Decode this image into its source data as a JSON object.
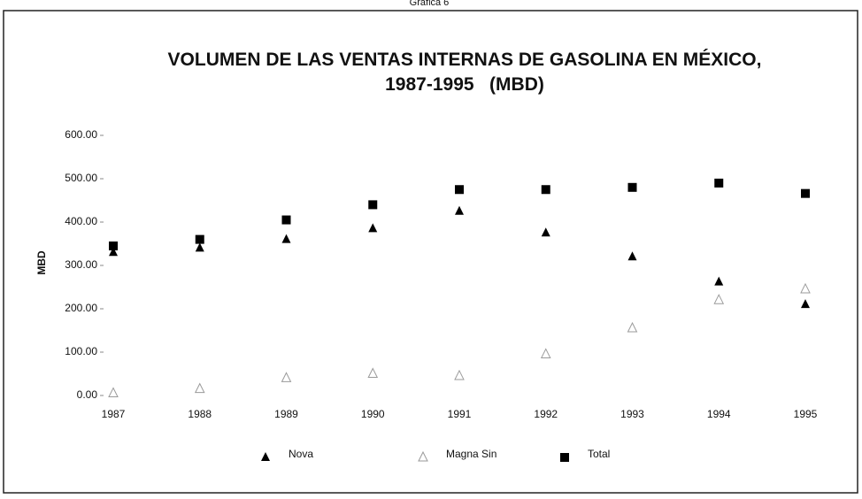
{
  "chart_data": {
    "type": "scatter",
    "caption": "Gráfica 6",
    "title": "VOLUMEN DE LAS VENTAS INTERNAS DE GASOLINA EN MÉXICO, 1987-1995   (MBD)",
    "y_label": "MBD",
    "categories": [
      "1987",
      "1988",
      "1989",
      "1990",
      "1991",
      "1992",
      "1993",
      "1994",
      "1995"
    ],
    "series": [
      {
        "name": "Nova",
        "color": "#000000",
        "marker": "triangle",
        "values": [
          330,
          340,
          360,
          385,
          425,
          375,
          320,
          262,
          210
        ]
      },
      {
        "name": "Magna Sin",
        "color": "#9a9a9a",
        "marker": "open-triangle",
        "values": [
          5,
          15,
          40,
          50,
          45,
          95,
          155,
          220,
          245
        ]
      },
      {
        "name": "Total",
        "color": "#000000",
        "marker": "square",
        "values": [
          345,
          360,
          405,
          440,
          475,
          475,
          480,
          490,
          466
        ]
      }
    ],
    "ylim": [
      0,
      600
    ],
    "yticks": [
      {
        "value": 0,
        "label": "0.00"
      },
      {
        "value": 100,
        "label": "100.00"
      },
      {
        "value": 200,
        "label": "200.00"
      },
      {
        "value": 300,
        "label": "300.00"
      },
      {
        "value": 400,
        "label": "400.00"
      },
      {
        "value": 500,
        "label": "500.00"
      },
      {
        "value": 600,
        "label": "600.00"
      }
    ],
    "grid": false,
    "legend": "bottom"
  }
}
